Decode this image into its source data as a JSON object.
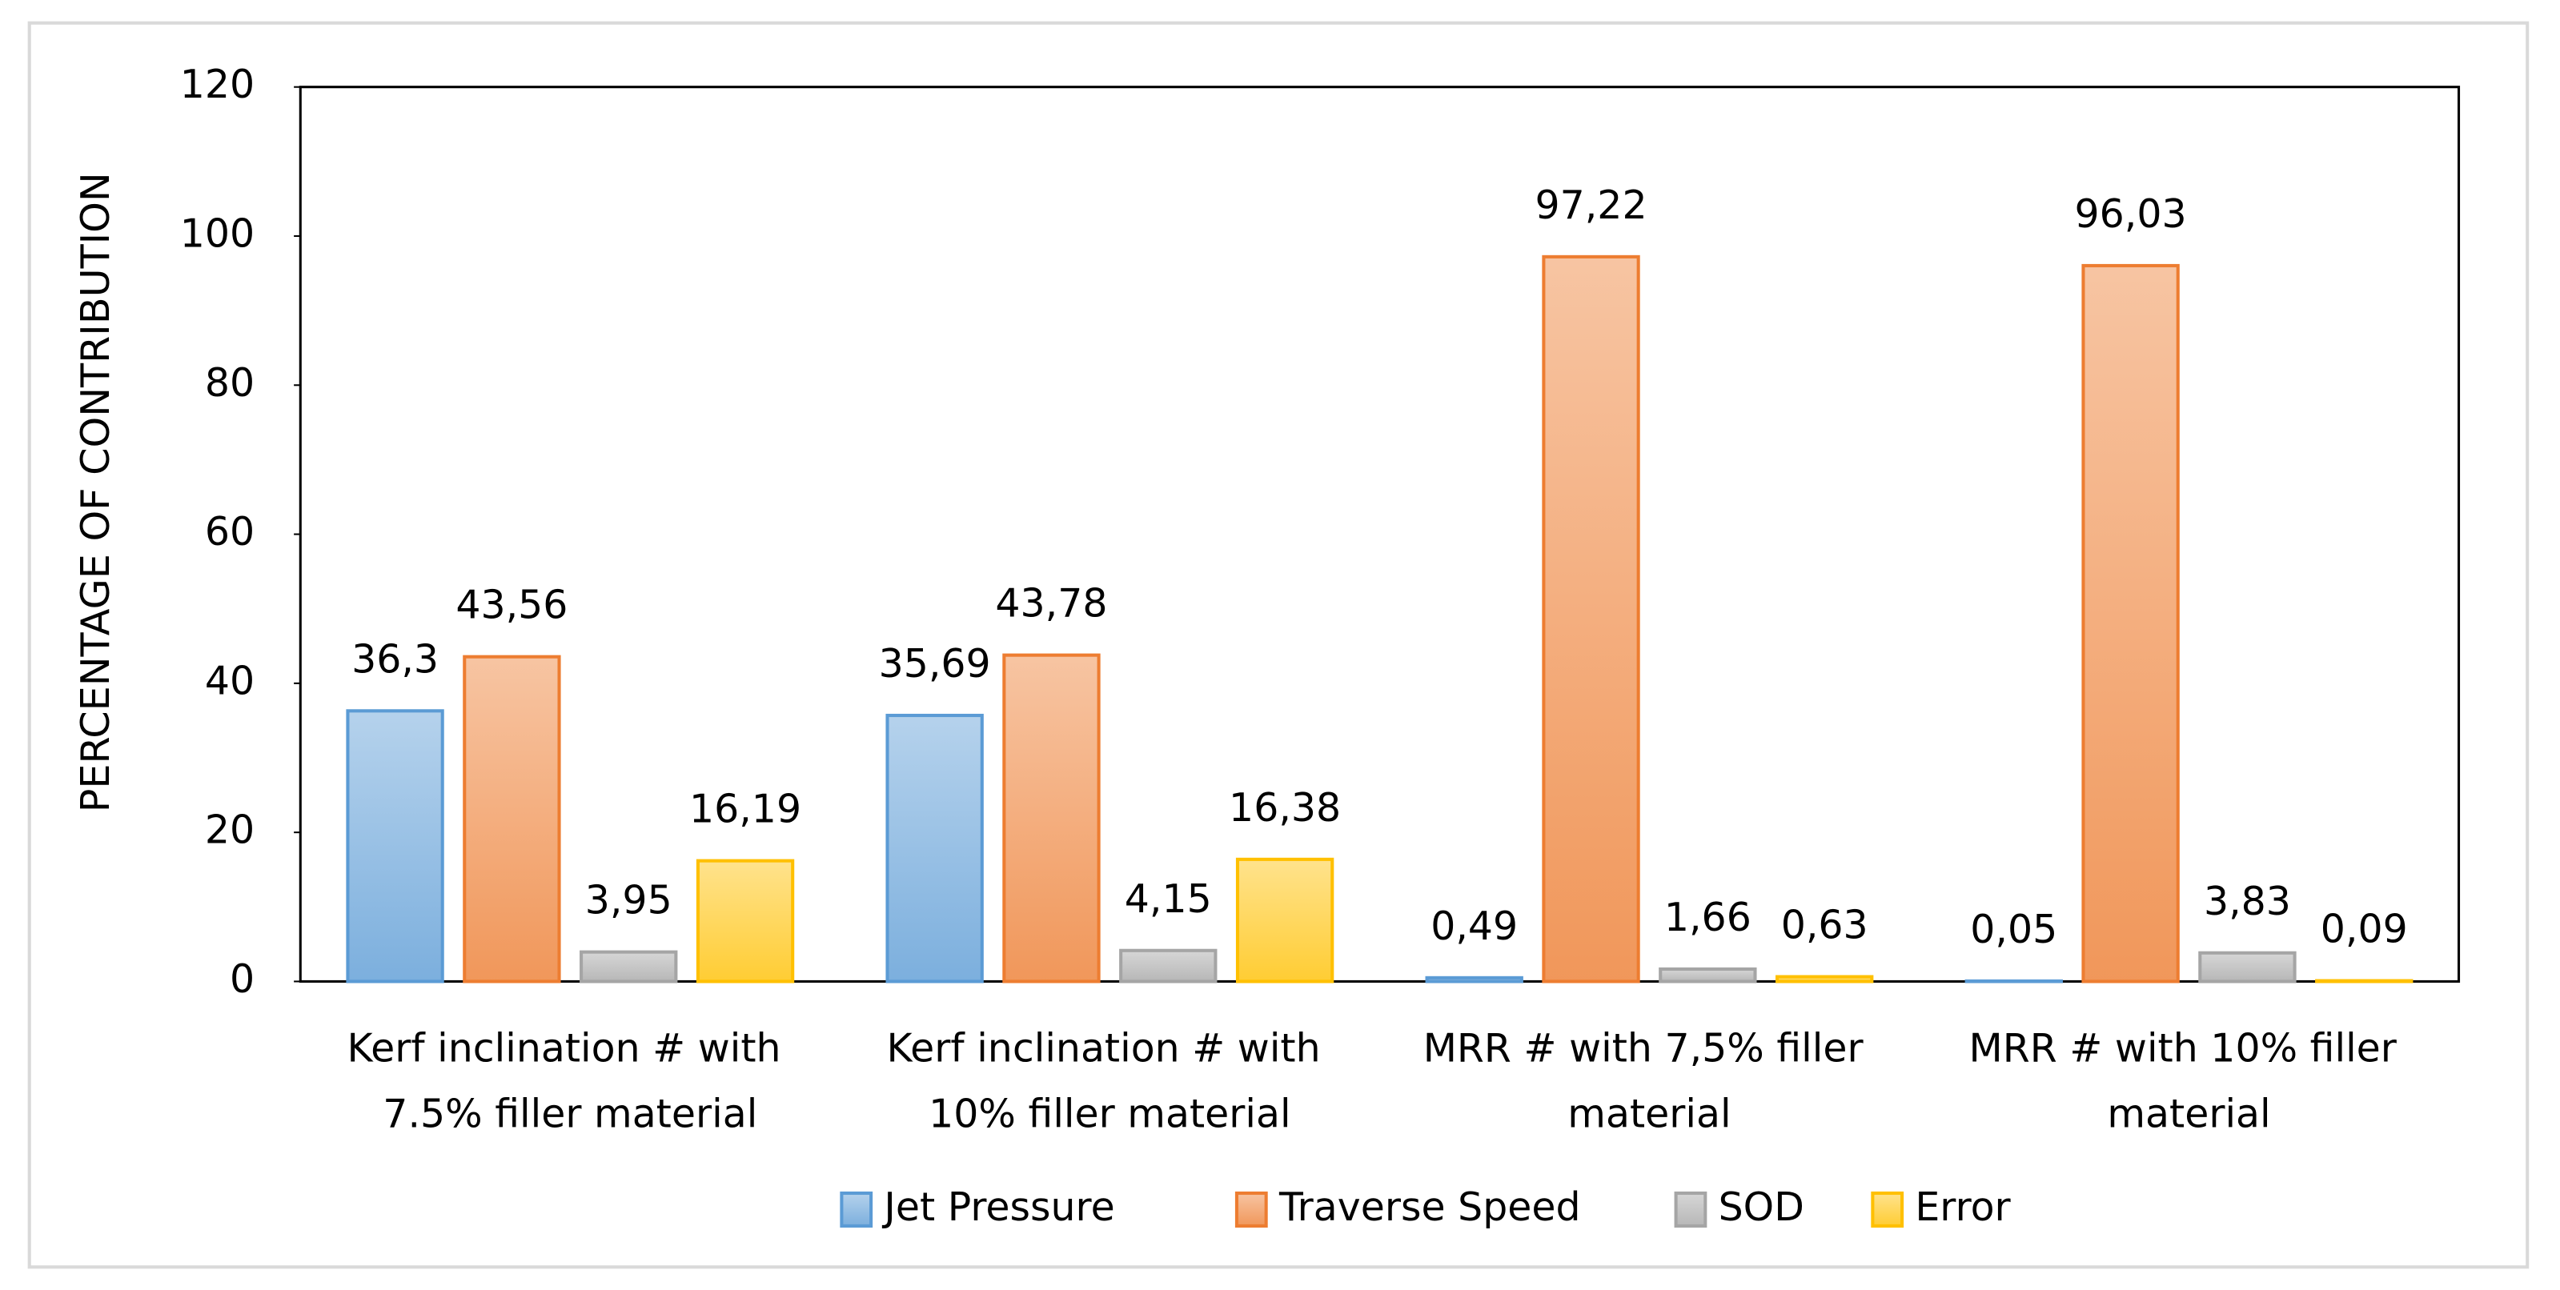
{
  "chart_data": {
    "type": "bar",
    "y_label": "PERCENTAGE OF CONTRIBUTION",
    "categories": [
      "Kerf inclination # with 7.5% filler material",
      "Kerf inclination # with 10% filler material",
      "MRR # with 7,5% filler material",
      "MRR # with 10% filler material"
    ],
    "series": [
      {
        "name": "Jet Pressure",
        "color": "#5b9bd5",
        "values": [
          36.3,
          35.69,
          0.49,
          0.05
        ],
        "value_labels": [
          "36,3",
          "35,69",
          "0,49",
          "0,05"
        ]
      },
      {
        "name": "Traverse Speed",
        "color": "#ed7d31",
        "values": [
          43.56,
          43.78,
          97.22,
          96.03
        ],
        "value_labels": [
          "43,56",
          "43,78",
          "97,22",
          "96,03"
        ]
      },
      {
        "name": "SOD",
        "color": "#a5a5a5",
        "values": [
          3.95,
          4.15,
          1.66,
          3.83
        ],
        "value_labels": [
          "3,95",
          "4,15",
          "1,66",
          "3,83"
        ]
      },
      {
        "name": "Error",
        "color": "#ffc000",
        "values": [
          16.19,
          16.38,
          0.63,
          0.09
        ],
        "value_labels": [
          "16,19",
          "16,38",
          "0,63",
          "0,09"
        ]
      }
    ],
    "ylim": [
      0,
      120
    ],
    "yticks": [
      0,
      20,
      40,
      60,
      80,
      100,
      120
    ],
    "grid": false,
    "legend": "bottom"
  }
}
